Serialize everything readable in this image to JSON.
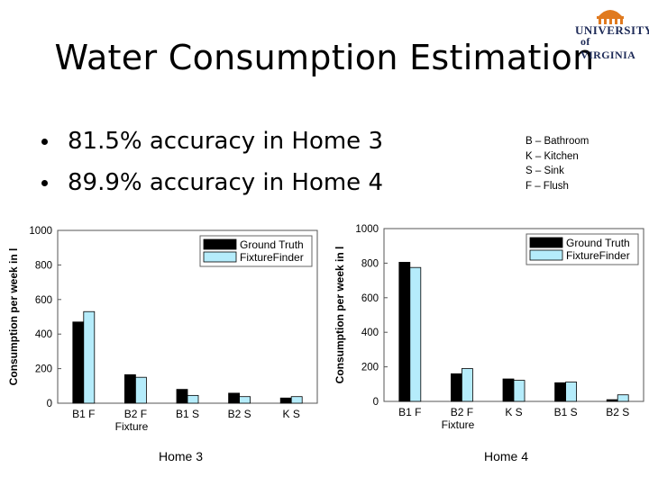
{
  "slide": {
    "title": "Water Consumption Estimation",
    "logo": {
      "line1": "UNIVERSITY",
      "line2": "of VIRGINIA"
    },
    "bullets": [
      "81.5% accuracy in Home 3",
      "89.9% accuracy in Home 4"
    ],
    "key": [
      "B – Bathroom",
      "K – Kitchen",
      "S – Sink",
      "F – Flush"
    ],
    "captions": [
      "Home 3",
      "Home 4"
    ]
  },
  "colors": {
    "ground_truth": "#000000",
    "fixture_finder": "#b5ecfb"
  },
  "chart_data": [
    {
      "type": "bar",
      "categories": [
        "B1 F",
        "B2 F",
        "B1 S",
        "B2 S",
        "K S"
      ],
      "series": [
        {
          "name": "Ground Truth",
          "values": [
            470,
            165,
            80,
            58,
            30
          ]
        },
        {
          "name": "FixtureFinder",
          "values": [
            530,
            150,
            45,
            38,
            38
          ]
        }
      ],
      "title": "",
      "xlabel": "Fixture",
      "ylabel": "Consumption per week in l",
      "ylim": [
        0,
        1000
      ],
      "yticks": [
        "0",
        "200",
        "400",
        "600",
        "800",
        "1000"
      ],
      "legend": "top-right"
    },
    {
      "type": "bar",
      "categories": [
        "B1 F",
        "B2 F",
        "K S",
        "B1 S",
        "B2 S"
      ],
      "series": [
        {
          "name": "Ground Truth",
          "values": [
            805,
            160,
            130,
            108,
            10
          ]
        },
        {
          "name": "FixtureFinder",
          "values": [
            775,
            190,
            122,
            112,
            38
          ]
        }
      ],
      "title": "",
      "xlabel": "Fixture",
      "ylabel": "Consumption per week in l",
      "ylim": [
        0,
        1000
      ],
      "yticks": [
        "0",
        "200",
        "400",
        "600",
        "800",
        "1000"
      ],
      "legend": "top-right"
    }
  ]
}
